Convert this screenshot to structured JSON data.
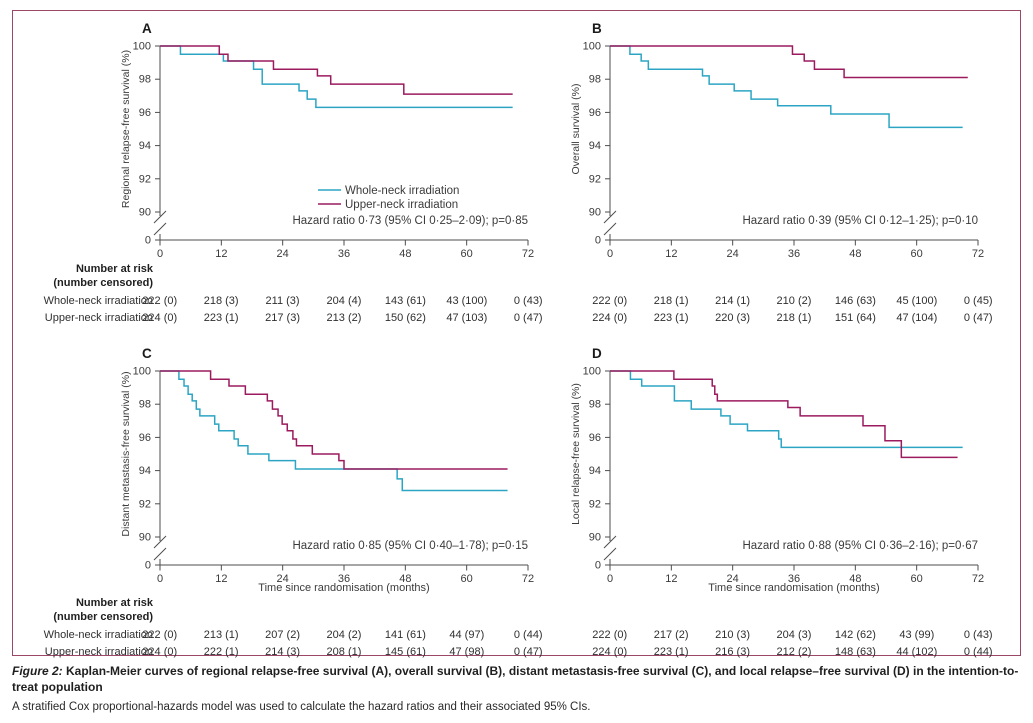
{
  "colors": {
    "whole_neck": "#2CA5C4",
    "upper_neck": "#9C1A5E",
    "border": "#9b4767",
    "axis": "#4d4d4d",
    "text": "#3b3b3b"
  },
  "legend": {
    "items": [
      {
        "label": "Whole-neck irradiation",
        "color": "#2CA5C4"
      },
      {
        "label": "Upper-neck irradiation",
        "color": "#9C1A5E"
      }
    ]
  },
  "chart_data": [
    {
      "id": "A",
      "type": "line",
      "subtype": "kaplan-meier-step",
      "panel_letter": "A",
      "ylabel": "Regional relapse-free survival (%)",
      "xlabel": "",
      "annotation": "Hazard ratio 0·73 (95% CI 0·25–2·09); p=0·85",
      "show_legend": true,
      "x_ticks": [
        0,
        12,
        24,
        36,
        48,
        60,
        72
      ],
      "y_ticks": [
        100,
        98,
        96,
        94,
        92,
        90
      ],
      "y_axis_break_to": 0,
      "xlim": [
        0,
        72
      ],
      "ylim": [
        90,
        100
      ],
      "series": [
        {
          "name": "Whole-neck irradiation",
          "color_key": "whole_neck",
          "points": [
            [
              0,
              100
            ],
            [
              4,
              99.5
            ],
            [
              12.4,
              99.1
            ],
            [
              18.3,
              98.6
            ],
            [
              20,
              97.7
            ],
            [
              27.2,
              97.3
            ],
            [
              28.8,
              96.8
            ],
            [
              30.5,
              96.3
            ],
            [
              69,
              96.3
            ]
          ]
        },
        {
          "name": "Upper-neck irradiation",
          "color_key": "upper_neck",
          "points": [
            [
              0,
              100
            ],
            [
              11.6,
              99.5
            ],
            [
              13.3,
              99.1
            ],
            [
              22.2,
              98.6
            ],
            [
              30.8,
              98.2
            ],
            [
              33.4,
              97.7
            ],
            [
              47.7,
              97.1
            ],
            [
              69,
              97.1
            ]
          ]
        }
      ]
    },
    {
      "id": "B",
      "type": "line",
      "subtype": "kaplan-meier-step",
      "panel_letter": "B",
      "ylabel": "Overall survival (%)",
      "xlabel": "",
      "annotation": "Hazard ratio 0·39 (95% CI 0·12–1·25); p=0·10",
      "show_legend": false,
      "x_ticks": [
        0,
        12,
        24,
        36,
        48,
        60,
        72
      ],
      "y_ticks": [
        100,
        98,
        96,
        94,
        92,
        90
      ],
      "y_axis_break_to": 0,
      "xlim": [
        0,
        72
      ],
      "ylim": [
        90,
        100
      ],
      "series": [
        {
          "name": "Whole-neck irradiation",
          "color_key": "whole_neck",
          "points": [
            [
              0,
              100
            ],
            [
              3.9,
              99.5
            ],
            [
              6.1,
              99.1
            ],
            [
              7.5,
              98.6
            ],
            [
              18.1,
              98.2
            ],
            [
              19.4,
              97.7
            ],
            [
              24.3,
              97.3
            ],
            [
              27.6,
              96.8
            ],
            [
              32.8,
              96.4
            ],
            [
              43.2,
              95.9
            ],
            [
              54.6,
              95.1
            ],
            [
              69,
              95.1
            ]
          ]
        },
        {
          "name": "Upper-neck irradiation",
          "color_key": "upper_neck",
          "points": [
            [
              0,
              100
            ],
            [
              35.7,
              99.5
            ],
            [
              38,
              99.1
            ],
            [
              40,
              98.6
            ],
            [
              45.8,
              98.1
            ],
            [
              70,
              98.1
            ]
          ]
        }
      ]
    },
    {
      "id": "C",
      "type": "line",
      "subtype": "kaplan-meier-step",
      "panel_letter": "C",
      "ylabel": "Distant metastasis-free survival (%)",
      "xlabel": "Time since randomisation (months)",
      "annotation": "Hazard ratio 0·85 (95% CI 0·40–1·78); p=0·15",
      "show_legend": false,
      "x_ticks": [
        0,
        12,
        24,
        36,
        48,
        60,
        72
      ],
      "y_ticks": [
        100,
        98,
        96,
        94,
        92,
        90
      ],
      "y_axis_break_to": 0,
      "xlim": [
        0,
        72
      ],
      "ylim": [
        90,
        100
      ],
      "series": [
        {
          "name": "Whole-neck irradiation",
          "color_key": "whole_neck",
          "points": [
            [
              0,
              100
            ],
            [
              3.7,
              99.5
            ],
            [
              4.7,
              99.1
            ],
            [
              5.5,
              98.6
            ],
            [
              6.3,
              98.2
            ],
            [
              7.1,
              97.7
            ],
            [
              7.8,
              97.3
            ],
            [
              10.7,
              96.8
            ],
            [
              11.5,
              96.4
            ],
            [
              14.5,
              95.9
            ],
            [
              15.3,
              95.5
            ],
            [
              17.2,
              95.0
            ],
            [
              21.3,
              94.6
            ],
            [
              26.5,
              94.1
            ],
            [
              46.4,
              93.5
            ],
            [
              47.4,
              92.8
            ],
            [
              68,
              92.8
            ]
          ]
        },
        {
          "name": "Upper-neck irradiation",
          "color_key": "upper_neck",
          "points": [
            [
              0,
              100
            ],
            [
              9.9,
              99.5
            ],
            [
              13.5,
              99.1
            ],
            [
              16.7,
              98.6
            ],
            [
              21,
              98.2
            ],
            [
              22,
              97.7
            ],
            [
              23.1,
              97.3
            ],
            [
              23.9,
              96.8
            ],
            [
              24.9,
              96.4
            ],
            [
              26,
              95.9
            ],
            [
              26.7,
              95.5
            ],
            [
              29.8,
              95.0
            ],
            [
              35,
              94.6
            ],
            [
              36,
              94.1
            ],
            [
              68,
              94.1
            ]
          ]
        }
      ]
    },
    {
      "id": "D",
      "type": "line",
      "subtype": "kaplan-meier-step",
      "panel_letter": "D",
      "ylabel": "Local relapse-free survival (%)",
      "xlabel": "Time since randomisation (months)",
      "annotation": "Hazard ratio 0·88 (95% CI 0·36–2·16); p=0·67",
      "show_legend": false,
      "x_ticks": [
        0,
        12,
        24,
        36,
        48,
        60,
        72
      ],
      "y_ticks": [
        100,
        98,
        96,
        94,
        92,
        90
      ],
      "y_axis_break_to": 0,
      "xlim": [
        0,
        72
      ],
      "ylim": [
        90,
        100
      ],
      "series": [
        {
          "name": "Whole-neck irradiation",
          "color_key": "whole_neck",
          "points": [
            [
              0,
              100
            ],
            [
              4,
              99.5
            ],
            [
              6.2,
              99.1
            ],
            [
              12.6,
              98.2
            ],
            [
              15.9,
              97.7
            ],
            [
              21.7,
              97.3
            ],
            [
              23.5,
              96.8
            ],
            [
              26.9,
              96.4
            ],
            [
              33,
              95.9
            ],
            [
              33.5,
              95.4
            ],
            [
              69,
              95.4
            ]
          ]
        },
        {
          "name": "Upper-neck irradiation",
          "color_key": "upper_neck",
          "points": [
            [
              0,
              100
            ],
            [
              12.5,
              99.5
            ],
            [
              20,
              99.1
            ],
            [
              20.5,
              98.6
            ],
            [
              21,
              98.2
            ],
            [
              34.8,
              97.8
            ],
            [
              37.2,
              97.3
            ],
            [
              49.5,
              96.7
            ],
            [
              53.8,
              95.8
            ],
            [
              57,
              94.8
            ],
            [
              68,
              94.8
            ]
          ]
        }
      ]
    }
  ],
  "risk_table": {
    "header_line1": "Number at risk",
    "header_line2": "(number censored)",
    "row_labels": [
      "Whole-neck irradiation",
      "Upper-neck irradiation"
    ],
    "values": {
      "A": {
        "whole_neck": [
          "222 (0)",
          "218 (3)",
          "211 (3)",
          "204 (4)",
          "143 (61)",
          "43 (100)",
          "0 (43)"
        ],
        "upper_neck": [
          "224 (0)",
          "223 (1)",
          "217 (3)",
          "213 (2)",
          "150 (62)",
          "47 (103)",
          "0 (47)"
        ]
      },
      "B": {
        "whole_neck": [
          "222 (0)",
          "218 (1)",
          "214 (1)",
          "210 (2)",
          "146 (63)",
          "45 (100)",
          "0 (45)"
        ],
        "upper_neck": [
          "224 (0)",
          "223 (1)",
          "220 (3)",
          "218 (1)",
          "151 (64)",
          "47 (104)",
          "0 (47)"
        ]
      },
      "C": {
        "whole_neck": [
          "222 (0)",
          "213 (1)",
          "207 (2)",
          "204 (2)",
          "141 (61)",
          "44 (97)",
          "0 (44)"
        ],
        "upper_neck": [
          "224 (0)",
          "222 (1)",
          "214 (3)",
          "208 (1)",
          "145 (61)",
          "47 (98)",
          "0 (47)"
        ]
      },
      "D": {
        "whole_neck": [
          "222 (0)",
          "217 (2)",
          "210 (3)",
          "204 (3)",
          "142 (62)",
          "43 (99)",
          "0 (43)"
        ],
        "upper_neck": [
          "224 (0)",
          "223 (1)",
          "216 (3)",
          "212 (2)",
          "148 (63)",
          "44 (102)",
          "0 (44)"
        ]
      }
    }
  },
  "caption": {
    "label": "Figure 2:",
    "title": "Kaplan-Meier curves of regional relapse-free survival (A), overall survival (B), distant metastasis-free survival (C), and local relapse–free survival (D) in the intention-to-treat population",
    "note": "A stratified Cox proportional-hazards model was used to calculate the hazard ratios and their associated 95% CIs."
  }
}
